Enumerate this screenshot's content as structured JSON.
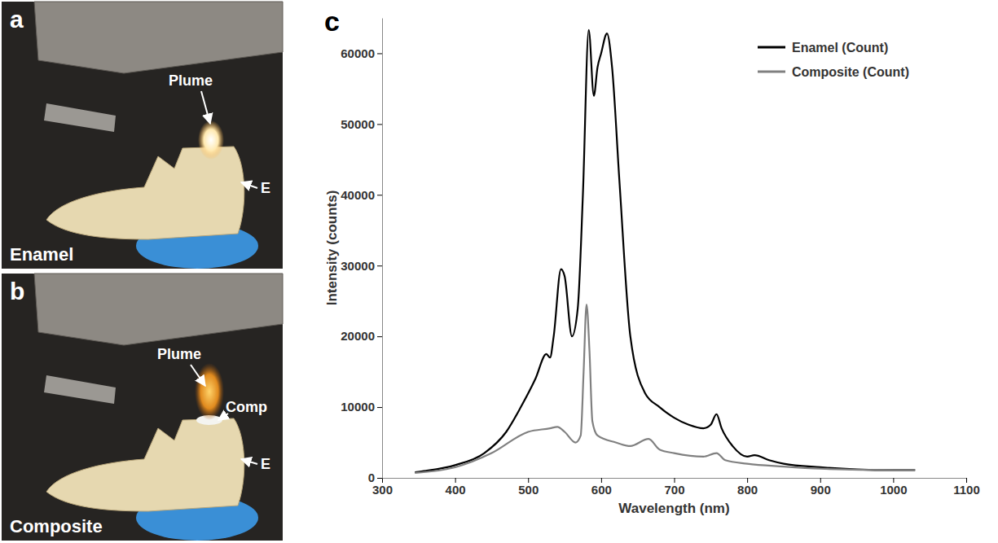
{
  "figure": {
    "panels": [
      {
        "letter": "a",
        "caption": "Enamel",
        "labels": [
          "Plume",
          "E"
        ]
      },
      {
        "letter": "b",
        "caption": "Composite",
        "labels": [
          "Plume",
          "Comp",
          "E"
        ]
      },
      {
        "letter": "c"
      }
    ]
  },
  "chart_data": {
    "type": "line",
    "x_label": "Wavelength (nm)",
    "y_label": "Intensity (counts)",
    "xlim": [
      300,
      1100
    ],
    "xticks": [
      300,
      400,
      500,
      600,
      700,
      800,
      900,
      1000,
      1100
    ],
    "ylim": [
      0,
      65000
    ],
    "yticks": [
      0,
      10000,
      20000,
      30000,
      40000,
      50000,
      60000
    ],
    "legend": "top-right",
    "grid": false,
    "series": [
      {
        "name": "Enamel (Count)",
        "color": "#000000",
        "x": [
          345,
          360,
          400,
          440,
          470,
          490,
          510,
          525,
          530,
          535,
          545,
          550,
          560,
          568,
          575,
          583,
          590,
          595,
          600,
          608,
          615,
          625,
          640,
          660,
          680,
          700,
          720,
          740,
          750,
          758,
          765,
          780,
          800,
          810,
          830,
          850,
          900,
          950,
          1000,
          1030
        ],
        "values": [
          800,
          1000,
          1800,
          3500,
          6500,
          10000,
          14000,
          17500,
          17000,
          20000,
          29500,
          28500,
          20000,
          24000,
          40000,
          63300,
          54000,
          58000,
          60000,
          62800,
          58000,
          42000,
          20000,
          12000,
          10000,
          8500,
          7500,
          7000,
          7500,
          9000,
          7000,
          4500,
          3000,
          3200,
          2500,
          2000,
          1500,
          1200,
          1100,
          1100
        ]
      },
      {
        "name": "Composite (Count)",
        "color": "#808080",
        "x": [
          345,
          400,
          450,
          500,
          530,
          540,
          550,
          565,
          572,
          576,
          580,
          584,
          588,
          595,
          620,
          640,
          665,
          680,
          700,
          740,
          758,
          770,
          800,
          850,
          900,
          1000,
          1030
        ],
        "values": [
          700,
          1500,
          3500,
          6500,
          7000,
          7200,
          6500,
          5000,
          6000,
          15000,
          24500,
          18000,
          8000,
          6000,
          5000,
          4500,
          5500,
          4000,
          3500,
          3000,
          3500,
          2500,
          2000,
          1600,
          1300,
          1100,
          1100
        ]
      }
    ]
  }
}
